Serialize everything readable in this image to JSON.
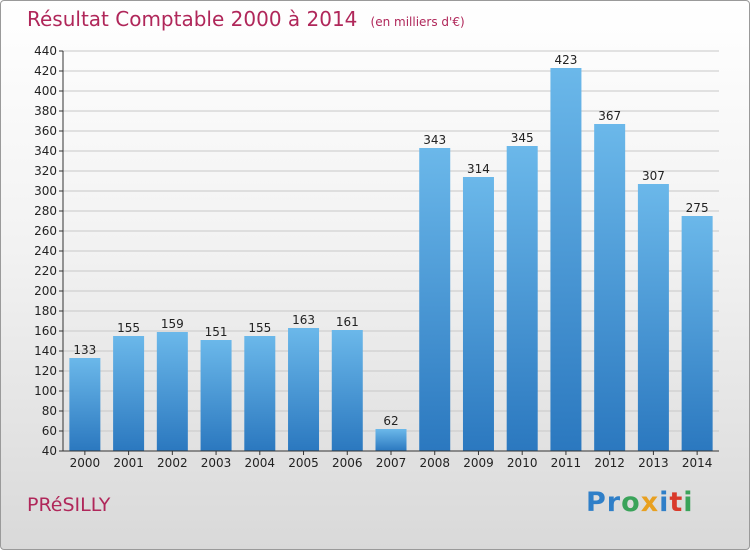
{
  "title": "Résultat Comptable 2000 à 2014",
  "subtitle": "(en milliers d'€)",
  "commune": "PRéSILLY",
  "logo": {
    "letters": [
      "P",
      "r",
      "o",
      "x",
      "i",
      "t",
      "i"
    ],
    "colors": [
      "#2f7fc8",
      "#2f7fc8",
      "#3aa35a",
      "#e8a020",
      "#2f7fc8",
      "#d93a2b",
      "#3aa35a"
    ]
  },
  "colors": {
    "title": "#b0275a",
    "bar_top": "#6bb8ea",
    "bar_bottom": "#2b78bf",
    "grid": "#c8c8c8",
    "axis": "#333333"
  },
  "chart_data": {
    "type": "bar",
    "categories": [
      "2000",
      "2001",
      "2002",
      "2003",
      "2004",
      "2005",
      "2006",
      "2007",
      "2008",
      "2009",
      "2010",
      "2011",
      "2012",
      "2013",
      "2014"
    ],
    "values": [
      133,
      155,
      159,
      151,
      155,
      163,
      161,
      62,
      343,
      314,
      345,
      423,
      367,
      307,
      275
    ],
    "yticks": [
      40,
      60,
      80,
      100,
      120,
      140,
      160,
      180,
      200,
      220,
      240,
      260,
      280,
      300,
      320,
      340,
      360,
      380,
      400,
      420,
      440
    ],
    "ylim": [
      40,
      440
    ],
    "grid": true,
    "data_labels": true
  }
}
